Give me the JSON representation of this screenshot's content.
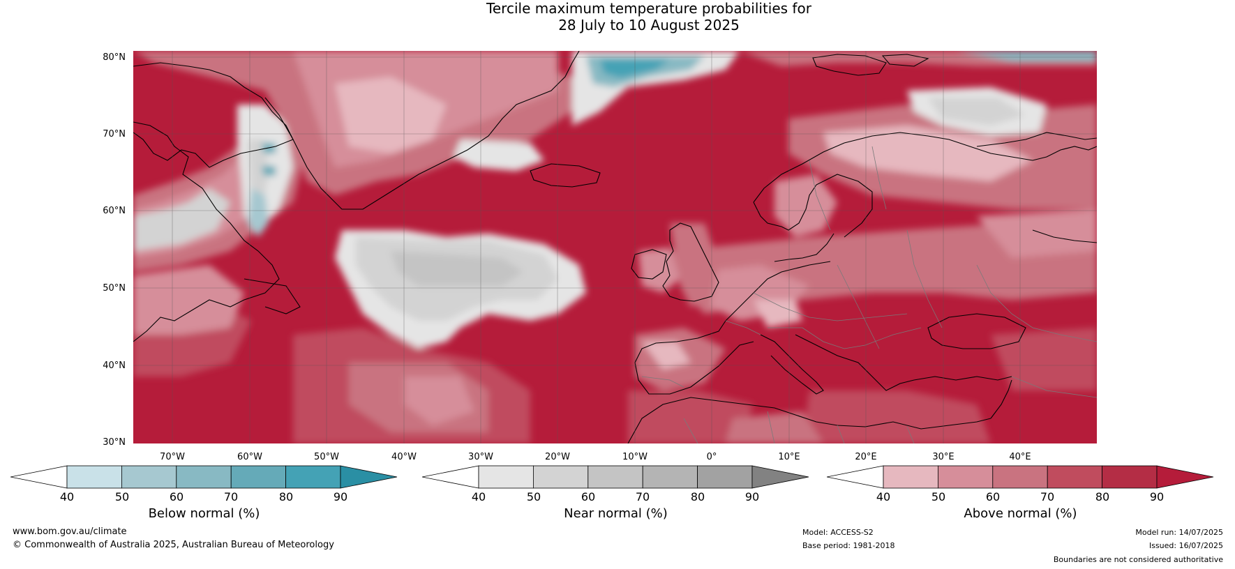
{
  "title_line1": "Tercile maximum temperature probabilities for",
  "title_line2": "28 July to 10 August 2025",
  "lat_labels": [
    "80°N",
    "70°N",
    "60°N",
    "50°N",
    "40°N",
    "30°N"
  ],
  "lon_labels": [
    "70°W",
    "60°W",
    "50°W",
    "40°W",
    "30°W",
    "20°W",
    "10°W",
    "0°",
    "10°E",
    "20°E",
    "30°E",
    "40°E"
  ],
  "colorbars": [
    {
      "label": "Below normal (%)",
      "ticks": [
        "40",
        "50",
        "60",
        "70",
        "80",
        "90"
      ],
      "colors": [
        "#ffffff",
        "#c9e1e8",
        "#a6c8d0",
        "#88b9c3",
        "#65aab8",
        "#44a2b5",
        "#2a8fa4"
      ]
    },
    {
      "label": "Near normal (%)",
      "ticks": [
        "40",
        "50",
        "60",
        "70",
        "80",
        "90"
      ],
      "colors": [
        "#ffffff",
        "#e5e5e5",
        "#d3d3d3",
        "#c4c4c4",
        "#b4b4b4",
        "#a2a2a2",
        "#828282"
      ]
    },
    {
      "label": "Above normal (%)",
      "ticks": [
        "40",
        "50",
        "60",
        "70",
        "80",
        "90"
      ],
      "colors": [
        "#ffffff",
        "#e6b8bf",
        "#d68e9a",
        "#c97380",
        "#c04c5e",
        "#b42d45",
        "#b51c3a"
      ]
    }
  ],
  "footer": {
    "website": "www.bom.gov.au/climate",
    "copyright": "© Commonwealth of Australia 2025, Australian Bureau of Meteorology",
    "model": "Model: ACCESS-S2",
    "base_period": "Base period: 1981-2018",
    "model_run": "Model run: 14/07/2025",
    "issued": "Issued: 16/07/2025",
    "disclaimer": "Boundaries are not considered authoritative"
  }
}
